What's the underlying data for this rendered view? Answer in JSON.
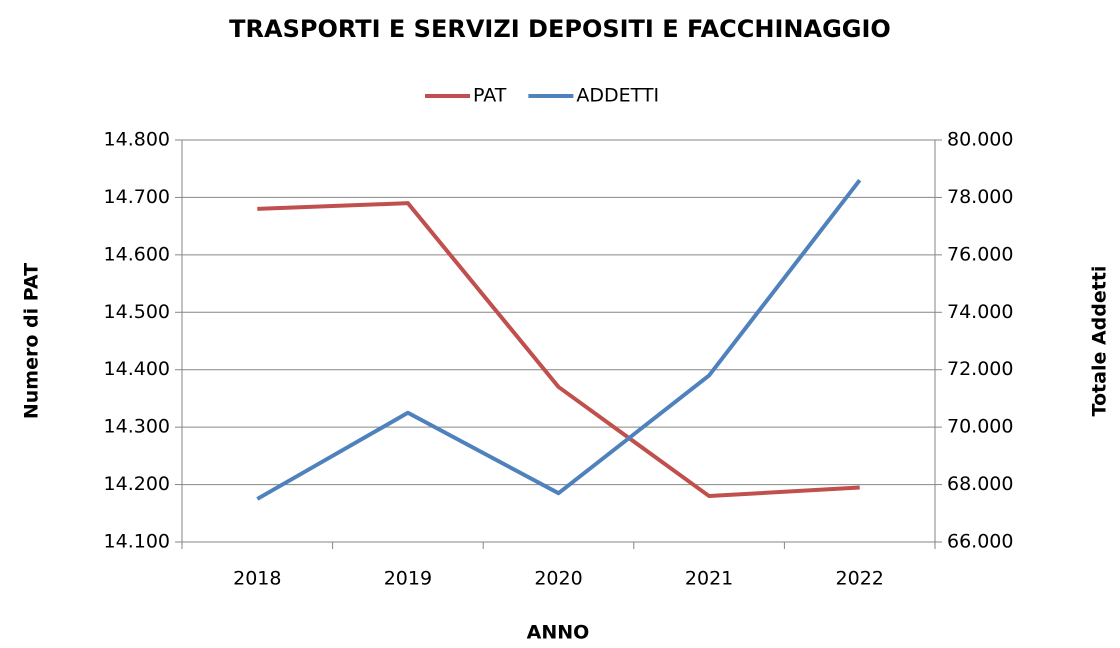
{
  "chart_data": {
    "type": "line",
    "title": "TRASPORTI E SERVIZI DEPOSITI E FACCHINAGGIO",
    "x_label": "ANNO",
    "y_label": "Numero di PAT",
    "y2_label": "Totale Addetti",
    "categories": [
      "2018",
      "2019",
      "2020",
      "2021",
      "2022"
    ],
    "series": [
      {
        "name": "PAT",
        "color": "#c0504d",
        "values": [
          14680,
          14690,
          14370,
          14180,
          14195
        ]
      },
      {
        "name": "ADDETTI",
        "color": "#4f81bd",
        "axis": "y2",
        "values": [
          67500,
          70500,
          67700,
          71800,
          78600
        ]
      }
    ],
    "ylim": [
      14100,
      14800
    ],
    "yticks": [
      {
        "value": 14100,
        "label": "14.100"
      },
      {
        "value": 14200,
        "label": "14.200"
      },
      {
        "value": 14300,
        "label": "14.300"
      },
      {
        "value": 14400,
        "label": "14.400"
      },
      {
        "value": 14500,
        "label": "14.500"
      },
      {
        "value": 14600,
        "label": "14.600"
      },
      {
        "value": 14700,
        "label": "14.700"
      },
      {
        "value": 14800,
        "label": "14.800"
      }
    ],
    "y2lim": [
      66000,
      80000
    ],
    "y2ticks": [
      {
        "value": 66000,
        "label": "66.000"
      },
      {
        "value": 68000,
        "label": "68.000"
      },
      {
        "value": 70000,
        "label": "70.000"
      },
      {
        "value": 72000,
        "label": "72.000"
      },
      {
        "value": 74000,
        "label": "74.000"
      },
      {
        "value": 76000,
        "label": "76.000"
      },
      {
        "value": 78000,
        "label": "78.000"
      },
      {
        "value": 80000,
        "label": "80.000"
      }
    ],
    "grid": true,
    "legend": "top"
  }
}
